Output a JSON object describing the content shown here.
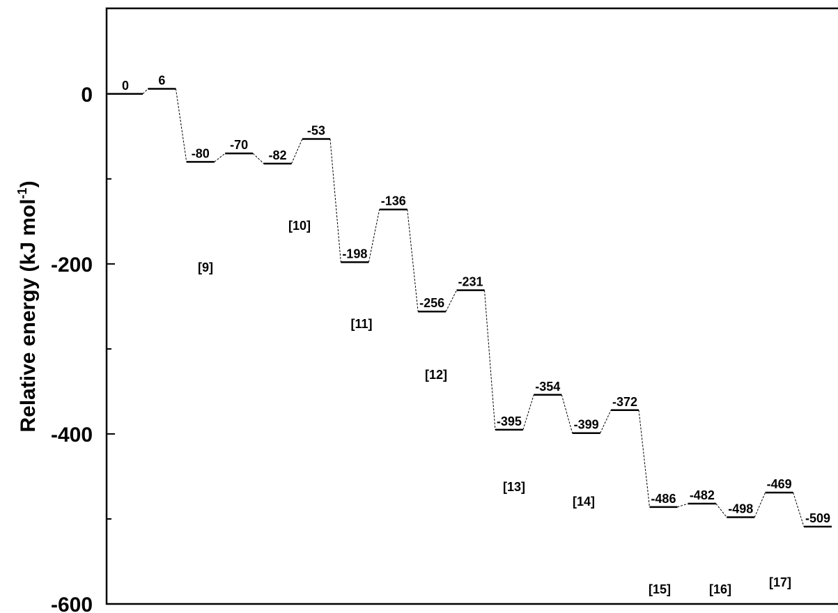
{
  "chart_data": {
    "type": "energy-profile",
    "y_label": "Relative energy (kJ mol",
    "y_label_sup": "-1",
    "y_label_end": ")",
    "values": [
      0,
      6,
      -80,
      -70,
      -82,
      -53,
      -198,
      -136,
      -256,
      -231,
      -395,
      -354,
      -399,
      -372,
      -486,
      -482,
      -498,
      -469,
      -509
    ],
    "color": "#000000",
    "ylim": [
      -600,
      100.6
    ],
    "yticks": [
      -600,
      -400,
      -200,
      0
    ],
    "yticks_minor": [
      -500,
      -300,
      -100
    ],
    "annotations": [
      "[9]",
      "[10]",
      "[11]",
      "[12]",
      "[13]",
      "[14]",
      "[15]",
      "[16]",
      "[17]"
    ]
  }
}
